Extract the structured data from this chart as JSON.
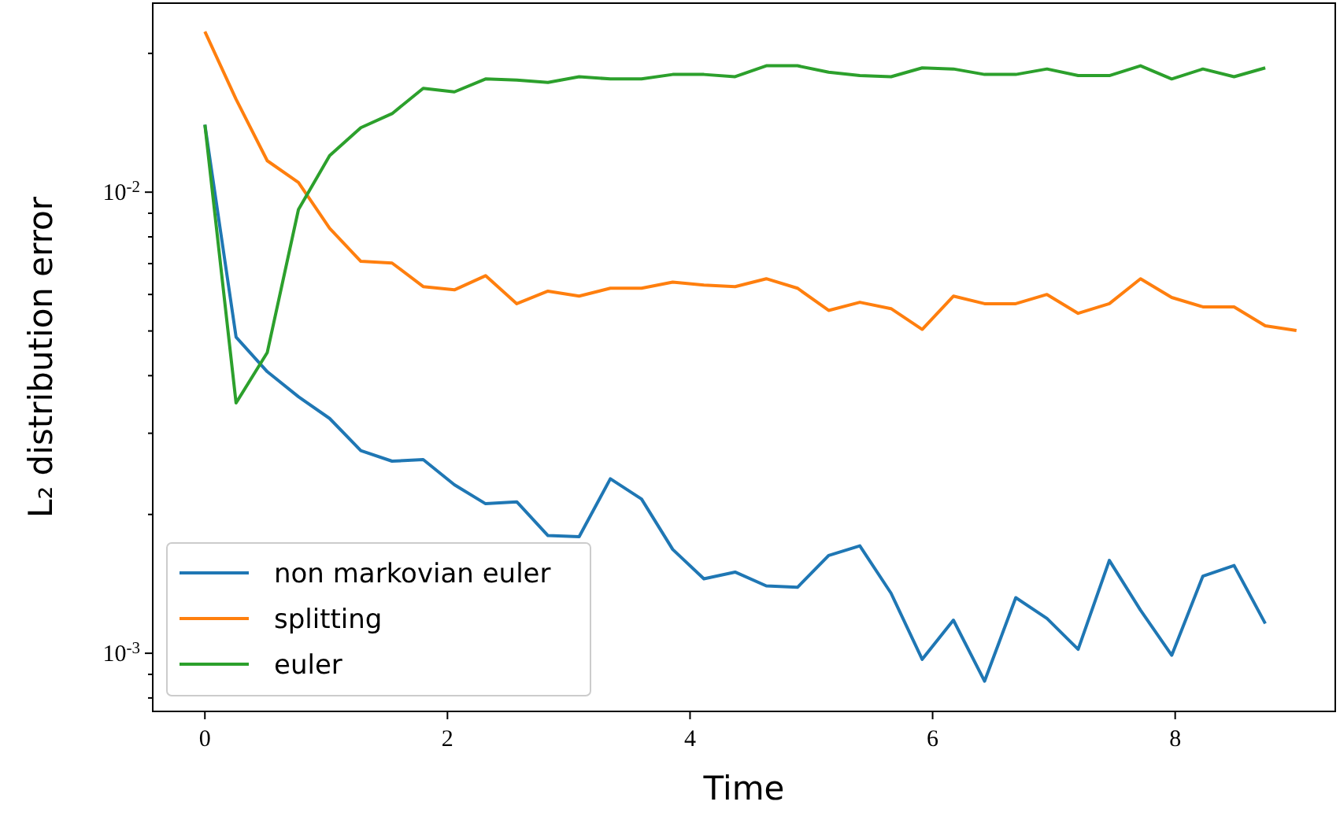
{
  "chart_data": {
    "type": "line",
    "xlabel": "Time",
    "ylabel": "L₂ distribution error",
    "log": "y",
    "legend": "lower left",
    "grid": false,
    "xlim": [
      -0.43,
      9.32
    ],
    "xticks": [
      0,
      2,
      4,
      6,
      8
    ],
    "ylim": [
      0.000748,
      0.0257
    ],
    "yticks": [
      {
        "value": 0.0008,
        "label": null
      },
      {
        "value": 0.0009,
        "label": null
      },
      {
        "value": 0.001,
        "label": "10$^{-3}$"
      },
      {
        "value": 0.002,
        "label": null
      },
      {
        "value": 0.003,
        "label": null
      },
      {
        "value": 0.004,
        "label": null
      },
      {
        "value": 0.005,
        "label": null
      },
      {
        "value": 0.006,
        "label": null
      },
      {
        "value": 0.007,
        "label": null
      },
      {
        "value": 0.008,
        "label": null
      },
      {
        "value": 0.009,
        "label": null
      },
      {
        "value": 0.01,
        "label": "10$^{-2}$"
      },
      {
        "value": 0.02,
        "label": null
      }
    ],
    "series": [
      {
        "name": "non markovian euler",
        "color": "#1f77b4",
        "x": [
          0,
          0.2571,
          0.5143,
          0.7714,
          1.0286,
          1.2857,
          1.5429,
          1.8,
          2.0571,
          2.3143,
          2.5714,
          2.8286,
          3.0857,
          3.3429,
          3.6,
          3.8571,
          4.1143,
          4.3714,
          4.6286,
          4.8857,
          5.1429,
          5.4,
          5.6571,
          5.9143,
          6.1714,
          6.4286,
          6.6857,
          6.9429,
          7.2,
          7.4571,
          7.7143,
          7.9714,
          8.2286,
          8.4857,
          8.7429
        ],
        "values": [
          0.014,
          0.00485,
          0.00408,
          0.0036,
          0.00323,
          0.00275,
          0.00261,
          0.00263,
          0.00232,
          0.00211,
          0.00213,
          0.0018,
          0.00179,
          0.00239,
          0.00216,
          0.00168,
          0.00145,
          0.0015,
          0.0014,
          0.00139,
          0.00163,
          0.00171,
          0.00135,
          0.00097,
          0.00118,
          0.00087,
          0.00132,
          0.00119,
          0.00102,
          0.00159,
          0.00124,
          0.00099,
          0.00147,
          0.00155,
          0.00116
        ]
      },
      {
        "name": "splitting",
        "color": "#ff7f0e",
        "x": [
          0,
          0.2571,
          0.5143,
          0.7714,
          1.0286,
          1.2857,
          1.5429,
          1.8,
          2.0571,
          2.3143,
          2.5714,
          2.8286,
          3.0857,
          3.3429,
          3.6,
          3.8571,
          4.1143,
          4.3714,
          4.6286,
          4.8857,
          5.1429,
          5.4,
          5.6571,
          5.9143,
          6.1714,
          6.4286,
          6.6857,
          6.9429,
          7.2,
          7.4571,
          7.7143,
          7.9714,
          8.2286,
          8.4857,
          8.7429,
          9.0
        ],
        "values": [
          0.0223,
          0.0159,
          0.0117,
          0.0105,
          0.00835,
          0.00708,
          0.00702,
          0.00624,
          0.00614,
          0.00659,
          0.00573,
          0.0061,
          0.00595,
          0.00619,
          0.00619,
          0.00638,
          0.00629,
          0.00624,
          0.00649,
          0.00619,
          0.00554,
          0.00577,
          0.00559,
          0.00504,
          0.00595,
          0.00573,
          0.00573,
          0.006,
          0.00546,
          0.00573,
          0.00649,
          0.00591,
          0.00564,
          0.00564,
          0.00513,
          0.00501
        ]
      },
      {
        "name": "euler",
        "color": "#2ca02c",
        "x": [
          0,
          0.2571,
          0.5143,
          0.7714,
          1.0286,
          1.2857,
          1.5429,
          1.8,
          2.0571,
          2.3143,
          2.5714,
          2.8286,
          3.0857,
          3.3429,
          3.6,
          3.8571,
          4.1143,
          4.3714,
          4.6286,
          4.8857,
          5.1429,
          5.4,
          5.6571,
          5.9143,
          6.1714,
          6.4286,
          6.6857,
          6.9429,
          7.2,
          7.4571,
          7.7143,
          7.9714,
          8.2286,
          8.4857,
          8.7429
        ],
        "values": [
          0.014,
          0.00349,
          0.00449,
          0.00917,
          0.012,
          0.0138,
          0.0148,
          0.0168,
          0.0165,
          0.0176,
          0.0175,
          0.0173,
          0.0178,
          0.0176,
          0.0176,
          0.018,
          0.018,
          0.0178,
          0.0188,
          0.0188,
          0.0182,
          0.0179,
          0.0178,
          0.0186,
          0.0185,
          0.018,
          0.018,
          0.0185,
          0.0179,
          0.0179,
          0.0188,
          0.0176,
          0.0185,
          0.0178,
          0.0186
        ]
      }
    ]
  }
}
